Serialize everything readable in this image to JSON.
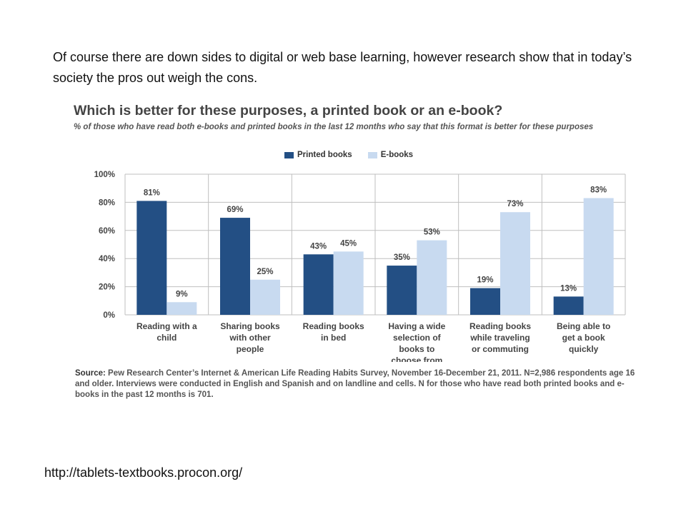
{
  "intro_text": "Of course there are down sides to digital or web base learning, however research show that in today’s society the pros out weigh the cons.",
  "footer_url": "http://tablets-textbooks.procon.org/",
  "colors": {
    "printed": "#234f84",
    "ebook": "#c8daf0",
    "grid": "#bfbfbf",
    "axis_text": "#444444"
  },
  "chart_data": {
    "type": "bar",
    "title": "Which is better for these purposes, a printed book or an e-book?",
    "subtitle": "% of those who have read both e-books and printed books in the last 12 months who say that this format is better for these purposes",
    "categories": [
      [
        "Reading with a",
        "child"
      ],
      [
        "Sharing books",
        "with other",
        "people"
      ],
      [
        "Reading books",
        "in bed"
      ],
      [
        "Having a wide",
        "selection of",
        "books to",
        "choose from"
      ],
      [
        "Reading books",
        "while traveling",
        "or commuting"
      ],
      [
        "Being able to",
        "get a book",
        "quickly"
      ]
    ],
    "series": [
      {
        "name": "Printed books",
        "values": [
          81,
          69,
          43,
          35,
          19,
          13
        ]
      },
      {
        "name": "E-books",
        "values": [
          9,
          25,
          45,
          53,
          73,
          83
        ]
      }
    ],
    "ylim": [
      0,
      100
    ],
    "yticks": [
      "0%",
      "20%",
      "40%",
      "60%",
      "80%",
      "100%"
    ],
    "value_suffix": "%",
    "grid": true,
    "legend_position": "top",
    "source_label": "Source:",
    "source_text": " Pew Research Center’s Internet & American Life Reading Habits Survey, November 16-December 21, 2011. N=2,986 respondents age 16 and older. Interviews were conducted in English and Spanish and on landline and cells. N for those who have read both printed books and e-books in the past 12 months is 701."
  }
}
